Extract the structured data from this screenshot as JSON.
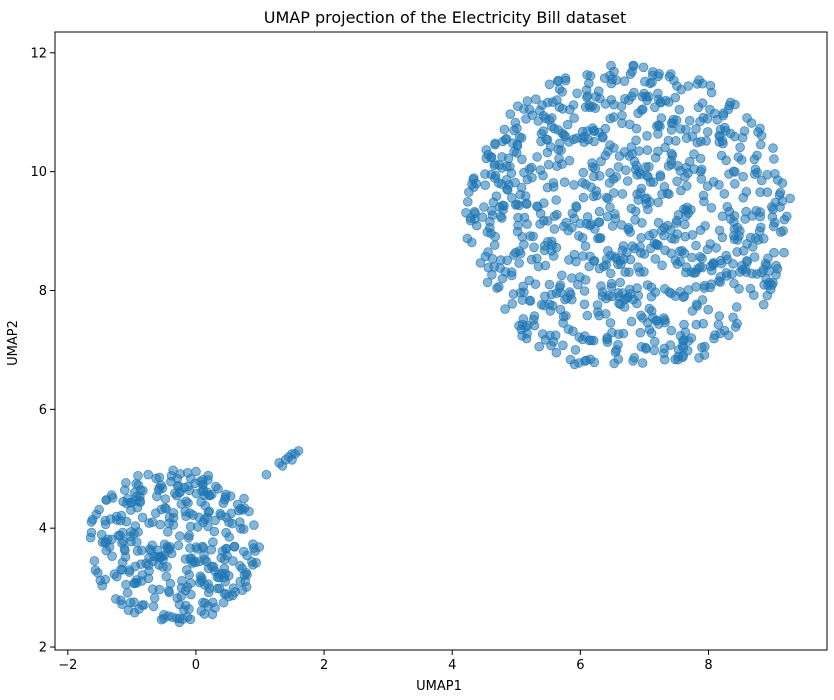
{
  "chart_data": {
    "type": "scatter",
    "title": "UMAP projection of the Electricity Bill dataset",
    "xlabel": "UMAP1",
    "ylabel": "UMAP2",
    "xlim": [
      -2.2,
      9.85
    ],
    "ylim": [
      1.95,
      12.35
    ],
    "xticks": [
      -2,
      0,
      2,
      4,
      6,
      8
    ],
    "yticks": [
      2,
      4,
      6,
      8,
      10,
      12
    ],
    "grid": false,
    "point_color": "#1f77b4",
    "point_alpha": 0.55,
    "clusters": [
      {
        "cx": -0.35,
        "cy": 3.7,
        "rx": 1.35,
        "ry": 1.3,
        "count": 340
      },
      {
        "cx": 6.75,
        "cy": 9.2,
        "rx": 2.55,
        "ry": 2.6,
        "count": 900
      }
    ],
    "bridge": [
      {
        "x": 0.65,
        "y": 4.4
      },
      {
        "x": 0.75,
        "y": 4.5
      },
      {
        "x": 0.55,
        "y": 4.25
      },
      {
        "x": 1.1,
        "y": 4.9
      },
      {
        "x": 1.3,
        "y": 5.1
      },
      {
        "x": 1.4,
        "y": 5.15
      },
      {
        "x": 1.45,
        "y": 5.2
      },
      {
        "x": 1.5,
        "y": 5.25
      },
      {
        "x": 1.55,
        "y": 5.25
      },
      {
        "x": 1.6,
        "y": 5.3
      },
      {
        "x": 1.35,
        "y": 5.05
      },
      {
        "x": 1.5,
        "y": 5.15
      }
    ]
  }
}
